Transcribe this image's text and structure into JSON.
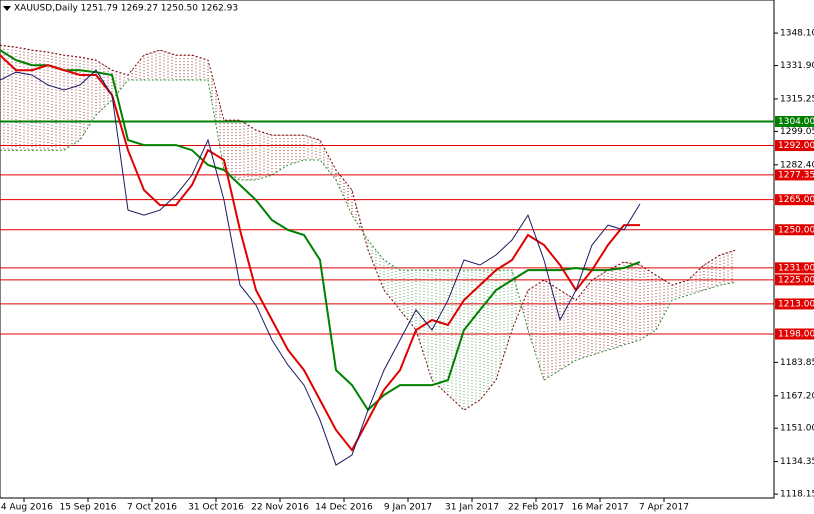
{
  "chart_data": {
    "type": "line",
    "title": "XAUUSD,Daily  1251.79 1269.27 1250.50 1262.93",
    "x": [
      0,
      4,
      8,
      12,
      16,
      20,
      24,
      28,
      32,
      36,
      40,
      44,
      48,
      52,
      56,
      60,
      64,
      68,
      72,
      76,
      80,
      84,
      88,
      92,
      96,
      100,
      104,
      108,
      112,
      116,
      120,
      124,
      128,
      132,
      136,
      140,
      144,
      148,
      152,
      156,
      160,
      164,
      168,
      172,
      176,
      180,
      184
    ],
    "xlim": [
      0,
      193.5
    ],
    "xticks": [
      {
        "value": 6,
        "label": "24 Aug 2016"
      },
      {
        "value": 22,
        "label": "15 Sep 2016"
      },
      {
        "value": 38,
        "label": "7 Oct 2016"
      },
      {
        "value": 54,
        "label": "31 Oct 2016"
      },
      {
        "value": 70,
        "label": "22 Nov 2016"
      },
      {
        "value": 86,
        "label": "14 Dec 2016"
      },
      {
        "value": 102,
        "label": "9 Jan 2017"
      },
      {
        "value": 118,
        "label": "31 Jan 2017"
      },
      {
        "value": 134,
        "label": "22 Feb 2017"
      },
      {
        "value": 150,
        "label": "16 Mar 2017"
      },
      {
        "value": 166,
        "label": "7 Apr 2017"
      }
    ],
    "ylim": [
      1116.2,
      1364.6
    ],
    "yticks": [
      {
        "value": 1348.1,
        "label": "1348.10"
      },
      {
        "value": 1331.9,
        "label": "1331.90"
      },
      1315.25,
      1299.05,
      {
        "value": 1282.4,
        "label": "1282.40"
      },
      1183.85,
      {
        "value": 1167.2,
        "label": "1167.20"
      },
      {
        "value": 1151,
        "label": "1151.00"
      },
      1134.35,
      1118.15
    ],
    "series": [
      {
        "color": "#7a0000",
        "dash": "2,2",
        "values": [
          1342.1,
          1341.1,
          1339.6,
          1338.6,
          1337.1,
          1336.1,
          1334.6,
          1329.6,
          1327.2,
          1337.1,
          1339.6,
          1337.1,
          1337.1,
          1334.6,
          1304.7,
          1304.7,
          1299.7,
          1297.2,
          1297.2,
          1297.2,
          1294.7,
          1279.8,
          1269.8,
          1239.9,
          1219.9,
          1210.0,
          1200.0,
          1175.0,
          1167.6,
          1160.1,
          1165.1,
          1175.0,
          1200.0,
          1219.9,
          1224.9,
          1219.9,
          1214.9,
          1224.9,
          1229.9,
          1233.9,
          1232.4,
          1227.4,
          1222.4,
          1224.9,
          1232.4,
          1237.4,
          1239.9
        ]
      },
      {
        "color": "#2e8b2e",
        "dash": "2,2",
        "values": [
          1289.7,
          1289.7,
          1289.7,
          1289.7,
          1289.7,
          1294.7,
          1307.2,
          1314.7,
          1324.7,
          1324.7,
          1324.7,
          1324.7,
          1324.7,
          1324.7,
          1279.8,
          1274.8,
          1274.8,
          1277.3,
          1282.3,
          1284.8,
          1284.8,
          1274.8,
          1257.3,
          1244.9,
          1234.9,
          1229.9,
          1229.9,
          1229.9,
          1229.9,
          1229.9,
          1229.9,
          1229.9,
          1229.9,
          1200.0,
          1175.0,
          1180.0,
          1185.0,
          1187.5,
          1190.0,
          1192.5,
          1195.0,
          1200.0,
          1214.9,
          1217.4,
          1219.9,
          1222.4,
          1223.9
        ]
      },
      {
        "color": "#008000",
        "width": 2,
        "values": [
          1339.6,
          1334.6,
          1332.1,
          1332.1,
          1329.6,
          1329.6,
          1328.6,
          1327.2,
          1294.7,
          1292.2,
          1292.2,
          1292.2,
          1289.7,
          1282.3,
          1279.8,
          1272.3,
          1264.8,
          1254.8,
          1249.9,
          1247.4,
          1234.9,
          1180.0,
          1172.5,
          1160.1,
          1167.6,
          1172.5,
          1172.5,
          1172.5,
          1175.0,
          1200.0,
          1210.0,
          1219.9,
          1224.9,
          1229.9,
          1229.9,
          1229.9,
          1230.9,
          1229.9,
          1229.9,
          1230.9,
          1233.9,
          null,
          null,
          null,
          null,
          null,
          null
        ]
      },
      {
        "color": "#e00000",
        "width": 2,
        "values": [
          1337.1,
          1329.6,
          1329.6,
          1332.1,
          1329.6,
          1327.2,
          1327.2,
          1317.2,
          1289.7,
          1269.8,
          1262.3,
          1262.3,
          1272.3,
          1289.7,
          1284.8,
          1249.9,
          1219.9,
          1205.0,
          1190.0,
          1180.0,
          1165.1,
          1150.1,
          1140.1,
          1155.1,
          1170.1,
          1180.0,
          1200.0,
          1205.0,
          1202.5,
          1214.9,
          1222.4,
          1229.9,
          1234.9,
          1247.4,
          1242.4,
          1232.4,
          1219.9,
          1229.9,
          1242.4,
          1252.3,
          1252.3,
          null,
          null,
          null,
          null,
          null,
          null
        ]
      },
      {
        "color": "#1a1a66",
        "width": 1,
        "values": [
          1324.7,
          1328.6,
          1327.2,
          1322.2,
          1319.7,
          1322.2,
          1329.6,
          1317.2,
          1259.8,
          1257.3,
          1259.8,
          1267.3,
          1277.3,
          1294.7,
          1264.8,
          1222.4,
          1212.4,
          1195.0,
          1182.5,
          1172.5,
          1155.1,
          1132.6,
          1137.6,
          1160.1,
          1180.0,
          1195.0,
          1210.0,
          1200.0,
          1214.9,
          1234.9,
          1232.4,
          1237.4,
          1244.9,
          1257.3,
          1234.9,
          1205.0,
          1219.9,
          1242.4,
          1252.3,
          1249.9,
          1262.9,
          null,
          null,
          null,
          null,
          null,
          null
        ]
      }
    ],
    "levels": [
      {
        "value": 1304,
        "label": "1304.00",
        "color": "#008000"
      },
      {
        "value": 1292,
        "label": "1292.00",
        "color": "#e00000"
      },
      {
        "value": 1277.35,
        "color": "#e00000"
      },
      {
        "value": 1265,
        "label": "1265.00",
        "color": "#e00000"
      },
      {
        "value": 1250,
        "label": "1250.00",
        "color": "#e00000"
      },
      {
        "value": 1231,
        "label": "1231.00",
        "color": "#e00000"
      },
      {
        "value": 1225,
        "label": "1225.00",
        "color": "#e00000"
      },
      {
        "value": 1213,
        "label": "1213.00",
        "color": "#e00000"
      },
      {
        "value": 1198,
        "label": "1198.00",
        "color": "#e00000"
      }
    ]
  }
}
